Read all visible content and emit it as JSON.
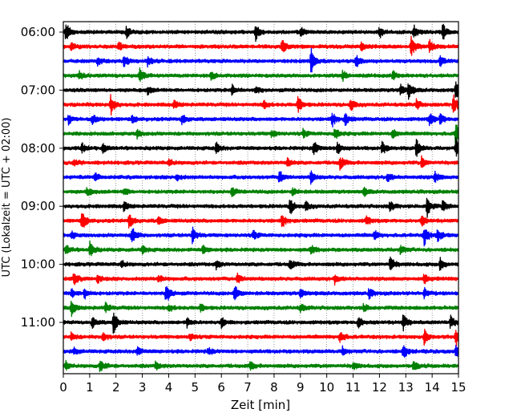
{
  "chart_data": {
    "type": "line",
    "title": "",
    "xlabel": "Zeit  [min]",
    "ylabel": "UTC (Lokalzeit = UTC + 02:00)",
    "xlim": [
      0,
      15
    ],
    "x_ticks": [
      "0",
      "1",
      "2",
      "3",
      "4",
      "5",
      "6",
      "7",
      "8",
      "9",
      "10",
      "11",
      "12",
      "13",
      "14",
      "15"
    ],
    "y_tick_labels": [
      "06:00",
      "07:00",
      "08:00",
      "09:00",
      "10:00",
      "11:00"
    ],
    "grid": {
      "vertical_dotted": true
    },
    "line_colors": [
      "#000000",
      "#ff0000",
      "#0000ff",
      "#008000"
    ],
    "row_start": "06:00",
    "row_minutes": 15,
    "row_count": 24,
    "series": [
      {
        "time": "06:00",
        "color": "#000000",
        "events": [
          {
            "t": 0.1,
            "a": 12
          },
          {
            "t": 2.4,
            "a": 7
          },
          {
            "t": 7.3,
            "a": 11
          },
          {
            "t": 9.0,
            "a": 6
          },
          {
            "t": 12.0,
            "a": 7
          },
          {
            "t": 13.3,
            "a": 9
          },
          {
            "t": 14.4,
            "a": 11
          }
        ]
      },
      {
        "time": "06:15",
        "color": "#ff0000",
        "events": [
          {
            "t": 0.3,
            "a": 6
          },
          {
            "t": 2.1,
            "a": 6
          },
          {
            "t": 8.3,
            "a": 9
          },
          {
            "t": 11.3,
            "a": 6
          },
          {
            "t": 13.2,
            "a": 14
          },
          {
            "t": 13.9,
            "a": 10
          }
        ]
      },
      {
        "time": "06:30",
        "color": "#0000ff",
        "events": [
          {
            "t": 1.3,
            "a": 6
          },
          {
            "t": 2.3,
            "a": 7
          },
          {
            "t": 3.2,
            "a": 6
          },
          {
            "t": 9.4,
            "a": 16
          },
          {
            "t": 11.1,
            "a": 8
          },
          {
            "t": 14.3,
            "a": 6
          }
        ]
      },
      {
        "time": "06:45",
        "color": "#008000",
        "events": [
          {
            "t": 0.6,
            "a": 6
          },
          {
            "t": 2.9,
            "a": 8
          },
          {
            "t": 5.6,
            "a": 5
          },
          {
            "t": 10.6,
            "a": 6
          },
          {
            "t": 12.5,
            "a": 5
          }
        ]
      },
      {
        "time": "07:00",
        "color": "#000000",
        "events": [
          {
            "t": 3.2,
            "a": 5
          },
          {
            "t": 6.4,
            "a": 6
          },
          {
            "t": 7.3,
            "a": 5
          },
          {
            "t": 12.8,
            "a": 7
          },
          {
            "t": 13.1,
            "a": 10
          },
          {
            "t": 14.9,
            "a": 12
          }
        ]
      },
      {
        "time": "07:15",
        "color": "#ff0000",
        "events": [
          {
            "t": 1.8,
            "a": 13
          },
          {
            "t": 4.2,
            "a": 5
          },
          {
            "t": 7.6,
            "a": 6
          },
          {
            "t": 8.9,
            "a": 11
          },
          {
            "t": 10.9,
            "a": 8
          },
          {
            "t": 13.4,
            "a": 6
          },
          {
            "t": 14.8,
            "a": 14
          }
        ]
      },
      {
        "time": "07:30",
        "color": "#0000ff",
        "events": [
          {
            "t": 0.2,
            "a": 6
          },
          {
            "t": 1.1,
            "a": 6
          },
          {
            "t": 2.6,
            "a": 5
          },
          {
            "t": 4.5,
            "a": 7
          },
          {
            "t": 10.2,
            "a": 10
          },
          {
            "t": 10.7,
            "a": 8
          },
          {
            "t": 13.9,
            "a": 8
          },
          {
            "t": 14.3,
            "a": 7
          }
        ]
      },
      {
        "time": "07:45",
        "color": "#008000",
        "events": [
          {
            "t": 2.8,
            "a": 5
          },
          {
            "t": 7.9,
            "a": 5
          },
          {
            "t": 9.1,
            "a": 5
          },
          {
            "t": 10.3,
            "a": 8
          },
          {
            "t": 12.5,
            "a": 6
          },
          {
            "t": 14.9,
            "a": 22
          }
        ]
      },
      {
        "time": "08:00",
        "color": "#000000",
        "events": [
          {
            "t": 0.7,
            "a": 6
          },
          {
            "t": 1.5,
            "a": 6
          },
          {
            "t": 5.8,
            "a": 7
          },
          {
            "t": 9.5,
            "a": 10
          },
          {
            "t": 10.4,
            "a": 9
          },
          {
            "t": 12.1,
            "a": 8
          },
          {
            "t": 13.4,
            "a": 11
          },
          {
            "t": 14.9,
            "a": 12
          }
        ]
      },
      {
        "time": "08:15",
        "color": "#ff0000",
        "events": [
          {
            "t": 0.4,
            "a": 5
          },
          {
            "t": 4.0,
            "a": 5
          },
          {
            "t": 8.5,
            "a": 6
          },
          {
            "t": 10.5,
            "a": 9
          },
          {
            "t": 13.6,
            "a": 7
          }
        ]
      },
      {
        "time": "08:30",
        "color": "#0000ff",
        "events": [
          {
            "t": 1.2,
            "a": 6
          },
          {
            "t": 4.3,
            "a": 5
          },
          {
            "t": 8.2,
            "a": 10
          },
          {
            "t": 9.4,
            "a": 8
          },
          {
            "t": 12.3,
            "a": 6
          },
          {
            "t": 14.1,
            "a": 7
          }
        ]
      },
      {
        "time": "08:45",
        "color": "#008000",
        "events": [
          {
            "t": 0.9,
            "a": 5
          },
          {
            "t": 2.3,
            "a": 5
          },
          {
            "t": 6.4,
            "a": 6
          },
          {
            "t": 8.7,
            "a": 5
          },
          {
            "t": 11.4,
            "a": 5
          }
        ]
      },
      {
        "time": "09:00",
        "color": "#000000",
        "events": [
          {
            "t": 2.3,
            "a": 6
          },
          {
            "t": 8.6,
            "a": 11
          },
          {
            "t": 9.2,
            "a": 6
          },
          {
            "t": 12.4,
            "a": 7
          },
          {
            "t": 13.8,
            "a": 14
          },
          {
            "t": 14.4,
            "a": 7
          }
        ]
      },
      {
        "time": "09:15",
        "color": "#ff0000",
        "events": [
          {
            "t": 0.7,
            "a": 14
          },
          {
            "t": 2.5,
            "a": 11
          },
          {
            "t": 3.6,
            "a": 5
          },
          {
            "t": 8.3,
            "a": 9
          },
          {
            "t": 11.5,
            "a": 6
          },
          {
            "t": 13.6,
            "a": 6
          }
        ]
      },
      {
        "time": "09:30",
        "color": "#0000ff",
        "events": [
          {
            "t": 0.3,
            "a": 5
          },
          {
            "t": 2.6,
            "a": 12
          },
          {
            "t": 4.9,
            "a": 10
          },
          {
            "t": 7.2,
            "a": 6
          },
          {
            "t": 11.8,
            "a": 6
          },
          {
            "t": 13.7,
            "a": 13
          },
          {
            "t": 14.2,
            "a": 9
          }
        ]
      },
      {
        "time": "09:45",
        "color": "#008000",
        "events": [
          {
            "t": 0.1,
            "a": 6
          },
          {
            "t": 1.0,
            "a": 11
          },
          {
            "t": 3.0,
            "a": 5
          },
          {
            "t": 5.3,
            "a": 5
          },
          {
            "t": 9.4,
            "a": 6
          },
          {
            "t": 12.8,
            "a": 6
          }
        ]
      },
      {
        "time": "10:00",
        "color": "#000000",
        "events": [
          {
            "t": 2.2,
            "a": 5
          },
          {
            "t": 5.8,
            "a": 5
          },
          {
            "t": 8.6,
            "a": 7
          },
          {
            "t": 12.4,
            "a": 10
          },
          {
            "t": 14.3,
            "a": 8
          }
        ]
      },
      {
        "time": "10:15",
        "color": "#ff0000",
        "events": [
          {
            "t": 0.4,
            "a": 8
          },
          {
            "t": 1.3,
            "a": 5
          },
          {
            "t": 3.6,
            "a": 5
          },
          {
            "t": 6.6,
            "a": 7
          },
          {
            "t": 10.3,
            "a": 6
          },
          {
            "t": 13.7,
            "a": 6
          }
        ]
      },
      {
        "time": "10:30",
        "color": "#0000ff",
        "events": [
          {
            "t": 0.3,
            "a": 6
          },
          {
            "t": 0.8,
            "a": 7
          },
          {
            "t": 3.9,
            "a": 14
          },
          {
            "t": 6.5,
            "a": 12
          },
          {
            "t": 9.0,
            "a": 6
          },
          {
            "t": 11.6,
            "a": 6
          },
          {
            "t": 13.7,
            "a": 6
          }
        ]
      },
      {
        "time": "10:45",
        "color": "#008000",
        "events": [
          {
            "t": 0.3,
            "a": 10
          },
          {
            "t": 1.6,
            "a": 6
          },
          {
            "t": 4.0,
            "a": 5
          },
          {
            "t": 5.2,
            "a": 5
          },
          {
            "t": 9.0,
            "a": 6
          },
          {
            "t": 11.4,
            "a": 5
          }
        ]
      },
      {
        "time": "11:00",
        "color": "#000000",
        "events": [
          {
            "t": 1.1,
            "a": 7
          },
          {
            "t": 1.9,
            "a": 15
          },
          {
            "t": 4.7,
            "a": 6
          },
          {
            "t": 6.0,
            "a": 6
          },
          {
            "t": 11.2,
            "a": 8
          },
          {
            "t": 12.9,
            "a": 10
          },
          {
            "t": 14.7,
            "a": 8
          }
        ]
      },
      {
        "time": "11:15",
        "color": "#ff0000",
        "events": [
          {
            "t": 0.3,
            "a": 5
          },
          {
            "t": 1.5,
            "a": 6
          },
          {
            "t": 4.8,
            "a": 5
          },
          {
            "t": 10.5,
            "a": 8
          },
          {
            "t": 13.7,
            "a": 9
          },
          {
            "t": 14.9,
            "a": 11
          }
        ]
      },
      {
        "time": "11:30",
        "color": "#0000ff",
        "events": [
          {
            "t": 0.4,
            "a": 5
          },
          {
            "t": 2.8,
            "a": 6
          },
          {
            "t": 5.5,
            "a": 5
          },
          {
            "t": 10.6,
            "a": 5
          },
          {
            "t": 12.9,
            "a": 10
          },
          {
            "t": 14.9,
            "a": 9
          }
        ]
      },
      {
        "time": "11:45",
        "color": "#008000",
        "events": [
          {
            "t": 0.1,
            "a": 5
          },
          {
            "t": 1.4,
            "a": 9
          },
          {
            "t": 3.5,
            "a": 5
          },
          {
            "t": 7.1,
            "a": 5
          },
          {
            "t": 11.0,
            "a": 5
          },
          {
            "t": 13.3,
            "a": 6
          }
        ]
      }
    ]
  }
}
